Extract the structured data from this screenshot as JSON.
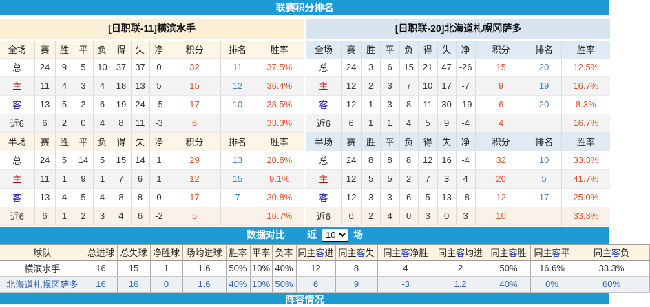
{
  "top_bar": {
    "title": "联赛积分排名"
  },
  "panels": [
    {
      "title": "[日职联-11]横滨水手",
      "stat_columns": [
        "赛",
        "胜",
        "平",
        "负",
        "得",
        "失",
        "净",
        "积分",
        "排名",
        "胜率"
      ],
      "sections": [
        {
          "label": "全场",
          "rows": [
            {
              "label": "总",
              "values": [
                "24",
                "9",
                "5",
                "10",
                "37",
                "37",
                "0",
                "32",
                "11",
                "37.5%"
              ]
            },
            {
              "label": "主",
              "values": [
                "11",
                "4",
                "3",
                "4",
                "18",
                "13",
                "5",
                "15",
                "12",
                "36.4%"
              ]
            },
            {
              "label": "客",
              "values": [
                "13",
                "5",
                "2",
                "6",
                "19",
                "24",
                "-5",
                "17",
                "10",
                "38.5%"
              ]
            },
            {
              "label": "近6",
              "values": [
                "6",
                "2",
                "0",
                "4",
                "8",
                "11",
                "-3",
                "6",
                "",
                "33.3%"
              ]
            }
          ]
        },
        {
          "label": "半场",
          "rows": [
            {
              "label": "总",
              "values": [
                "24",
                "5",
                "14",
                "5",
                "15",
                "14",
                "1",
                "29",
                "13",
                "20.8%"
              ]
            },
            {
              "label": "主",
              "values": [
                "11",
                "1",
                "9",
                "1",
                "7",
                "6",
                "1",
                "12",
                "15",
                "9.1%"
              ]
            },
            {
              "label": "客",
              "values": [
                "13",
                "4",
                "5",
                "4",
                "8",
                "8",
                "0",
                "17",
                "7",
                "30.8%"
              ]
            },
            {
              "label": "近6",
              "values": [
                "6",
                "1",
                "2",
                "3",
                "4",
                "6",
                "-2",
                "5",
                "",
                "16.7%"
              ]
            }
          ]
        }
      ]
    },
    {
      "title": "[日职联-20]北海道札幌冈萨多",
      "stat_columns": [
        "赛",
        "胜",
        "平",
        "负",
        "得",
        "失",
        "净",
        "积分",
        "排名",
        "胜率"
      ],
      "sections": [
        {
          "label": "全场",
          "rows": [
            {
              "label": "总",
              "values": [
                "24",
                "3",
                "6",
                "15",
                "21",
                "47",
                "-26",
                "15",
                "20",
                "12.5%"
              ]
            },
            {
              "label": "主",
              "values": [
                "12",
                "2",
                "3",
                "7",
                "10",
                "17",
                "-7",
                "9",
                "19",
                "16.7%"
              ]
            },
            {
              "label": "客",
              "values": [
                "12",
                "1",
                "3",
                "8",
                "11",
                "30",
                "-19",
                "6",
                "20",
                "8.3%"
              ]
            },
            {
              "label": "近6",
              "values": [
                "6",
                "1",
                "1",
                "4",
                "5",
                "9",
                "-4",
                "4",
                "",
                "16.7%"
              ]
            }
          ]
        },
        {
          "label": "半场",
          "rows": [
            {
              "label": "总",
              "values": [
                "24",
                "8",
                "8",
                "8",
                "12",
                "16",
                "-4",
                "32",
                "10",
                "33.3%"
              ]
            },
            {
              "label": "主",
              "values": [
                "12",
                "5",
                "5",
                "2",
                "7",
                "3",
                "4",
                "20",
                "5",
                "41.7%"
              ]
            },
            {
              "label": "客",
              "values": [
                "12",
                "3",
                "3",
                "6",
                "5",
                "13",
                "-8",
                "12",
                "17",
                "25.0%"
              ]
            },
            {
              "label": "近6",
              "values": [
                "6",
                "2",
                "4",
                "0",
                "3",
                "0",
                "3",
                "10",
                "",
                "33.3%"
              ]
            }
          ]
        }
      ]
    }
  ],
  "compare_bar": {
    "title": "数据对比",
    "near_label": "近",
    "unit_label": "场",
    "selected_games": "10",
    "options": [
      "10"
    ]
  },
  "compare_table": {
    "headers": [
      "球队",
      "总进球",
      "总失球",
      "净胜球",
      "场均进球",
      "胜率",
      "平率",
      "负率",
      "同主客进",
      "同主客失",
      "同主客净胜",
      "同主客均进",
      "同主客胜",
      "同主客平",
      "同主客负"
    ],
    "rows": [
      {
        "team": "横滨水手",
        "values": [
          "16",
          "15",
          "1",
          "1.6",
          "50%",
          "10%",
          "40%",
          "12",
          "8",
          "4",
          "2",
          "50%",
          "16.6%",
          "33.3%"
        ]
      },
      {
        "team": "北海道札幌冈萨多",
        "values": [
          "16",
          "16",
          "0",
          "1.6",
          "40%",
          "10%",
          "50%",
          "6",
          "9",
          "-3",
          "1.2",
          "40%",
          "0%",
          "60%"
        ]
      }
    ]
  },
  "bottom_bar": {
    "title": "阵容情况"
  },
  "colors": {
    "bar_blue": "#1d9ad3",
    "score_red": "#e0512e",
    "rank_blue": "#4080c0",
    "home_red": "#c00000",
    "away_navy": "#1a1aa6",
    "compare_team_blue": "#2b64a8",
    "panel_cream": "#fbefd6",
    "panel_light_blue": "#d8e5f1"
  }
}
